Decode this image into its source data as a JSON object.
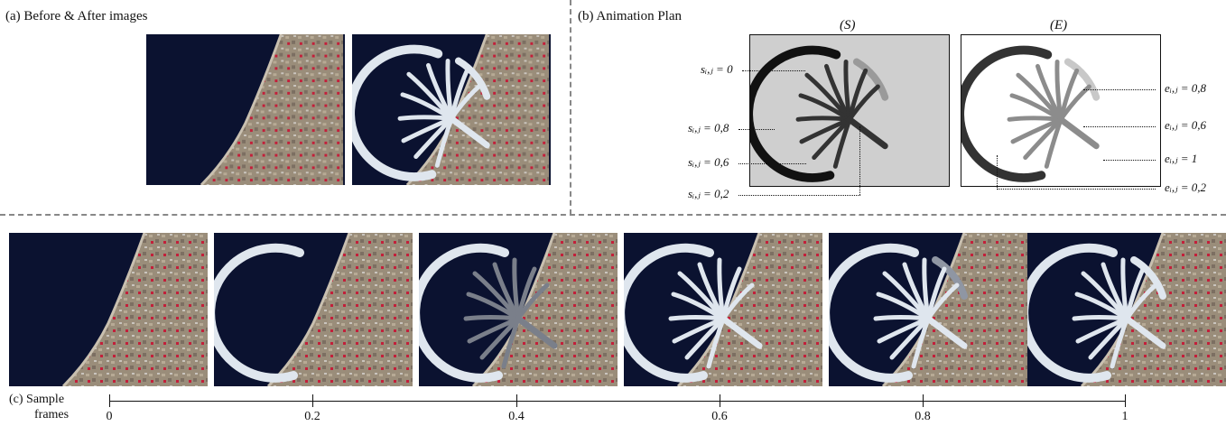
{
  "panel_a": {
    "label": "(a) Before & After images"
  },
  "panel_b": {
    "label": "(b) Animation Plan",
    "start_title": "(S)",
    "end_title": "(E)",
    "start_annotations": [
      "sᵢ,ⱼ = 0",
      "sᵢ,ⱼ = 0,8",
      "sᵢ,ⱼ = 0,6",
      "sᵢ,ⱼ = 0,2"
    ],
    "end_annotations": [
      "eᵢ,ⱼ = 0,8",
      "eᵢ,ⱼ = 0,6",
      "eᵢ,ⱼ = 1",
      "eᵢ,ⱼ = 0,2"
    ]
  },
  "panel_c": {
    "label_line1": "(c) Sample",
    "label_line2": "frames",
    "ticks": [
      "0",
      "0.2",
      "0.4",
      "0.6",
      "0.8",
      "1"
    ]
  },
  "colors": {
    "ocean": "#0b1230",
    "island": "#dfe6ee",
    "plan_bg": "#cfcfcf",
    "divider": "#888888"
  }
}
